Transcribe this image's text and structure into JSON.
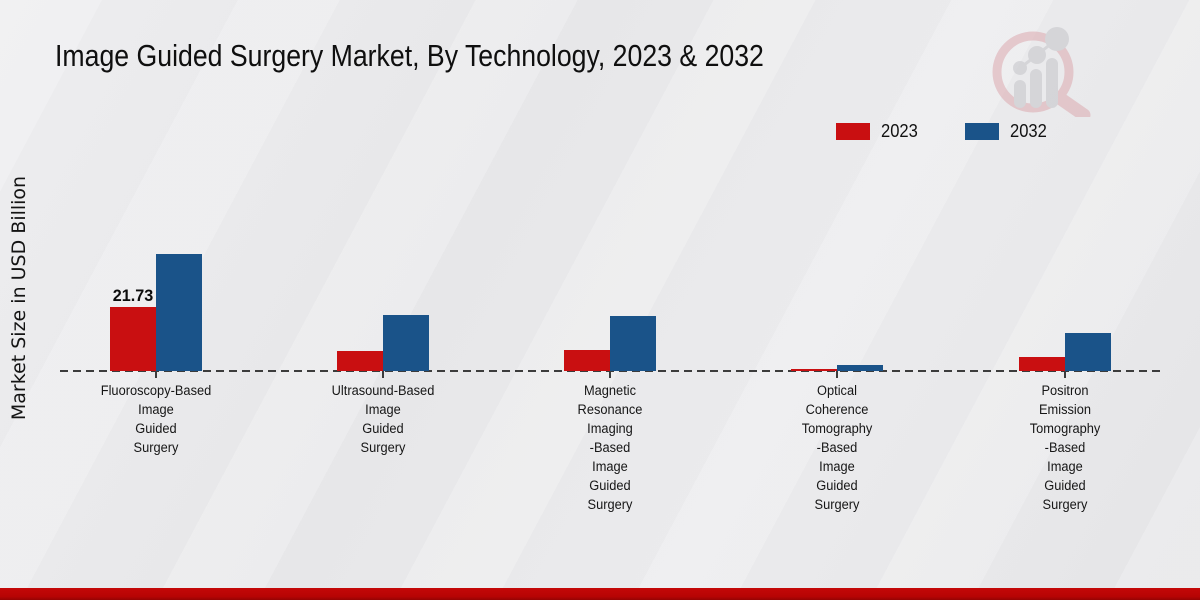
{
  "title": "Image Guided Surgery Market, By Technology, 2023 & 2032",
  "ylabel": "Market Size in USD Billion",
  "legend": {
    "items": [
      {
        "label": "2023",
        "color": "#c90f11"
      },
      {
        "label": "2032",
        "color": "#1a5389"
      }
    ]
  },
  "branding": {
    "logo_icon": "magnifier-bar-chart-logo"
  },
  "footer": {
    "color": "#b90504"
  },
  "chart_data": {
    "type": "bar",
    "categories": [
      "Fluoroscopy-Based Image Guided Surgery",
      "Ultrasound-Based Image Guided Surgery",
      "Magnetic Resonance Imaging-Based Image Guided Surgery",
      "Optical Coherence Tomography-Based Image Guided Surgery",
      "Positron Emission Tomography-Based Image Guided Surgery"
    ],
    "categories_lines": [
      [
        "Fluoroscopy-Based",
        "Image",
        "Guided",
        "Surgery"
      ],
      [
        "Ultrasound-Based",
        "Image",
        "Guided",
        "Surgery"
      ],
      [
        "Magnetic",
        "Resonance",
        "Imaging",
        "-Based",
        "Image",
        "Guided",
        "Surgery"
      ],
      [
        "Optical",
        "Coherence",
        "Tomography",
        "-Based",
        "Image",
        "Guided",
        "Surgery"
      ],
      [
        "Positron",
        "Emission",
        "Tomography",
        "-Based",
        "Image",
        "Guided",
        "Surgery"
      ]
    ],
    "series": [
      {
        "name": "2023",
        "color": "#c90f11",
        "values": [
          21.73,
          6.9,
          7.2,
          0.7,
          4.8
        ]
      },
      {
        "name": "2032",
        "color": "#1a5389",
        "values": [
          39.7,
          19.0,
          18.8,
          2.0,
          12.9
        ]
      }
    ],
    "bar_labels": [
      {
        "series_index": 0,
        "category_index": 0,
        "text": "21.73"
      }
    ],
    "title": "Image Guided Surgery Market, By Technology, 2023 & 2032",
    "xlabel": "",
    "ylabel": "Market Size in USD Billion",
    "ylim": [
      0,
      42
    ],
    "grid": false,
    "legend_position": "top-right",
    "baseline_style": "dashed"
  }
}
